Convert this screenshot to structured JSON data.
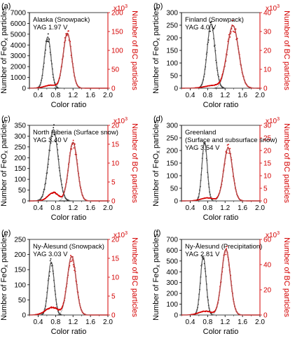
{
  "colors": {
    "black_series": "#000000",
    "red_series": "#d40000",
    "fit_gray": "#888888"
  },
  "chart_data": [
    {
      "type": "line",
      "panel_label": "(a)",
      "annotation": [
        "Alaska (Snowpack)",
        "YAG 1.97 V"
      ],
      "xlabel": "Color ratio",
      "ylabel_left": "Number of FeOx particles",
      "ylabel_right": "Number of BC particles",
      "right_multiplier": "x10",
      "right_multiplier_exp": "3",
      "xlim": [
        0.2,
        2.0
      ],
      "xticks": [
        0.4,
        0.8,
        1.2,
        1.6,
        2.0
      ],
      "ylim_left": [
        0,
        7000
      ],
      "yticks_left": [
        0,
        1000,
        2000,
        3000,
        4000,
        5000,
        6000,
        7000
      ],
      "ylim_right": [
        0,
        200
      ],
      "yticks_right": [
        0,
        50,
        100,
        150,
        200
      ],
      "series": [
        {
          "axis": "left",
          "color": "#000000",
          "fit": {
            "center": 0.62,
            "width": 0.075,
            "peak": 4750
          }
        },
        {
          "axis": "right",
          "color": "#d40000",
          "fit": {
            "center": 1.07,
            "width": 0.095,
            "peak": 145
          },
          "shoulder": {
            "center": 0.7,
            "width": 0.15,
            "peak": 8
          }
        }
      ]
    },
    {
      "type": "line",
      "panel_label": "(b)",
      "annotation": [
        "Finland (Snowpack)",
        "YAG 4.0 V"
      ],
      "xlabel": "Color ratio",
      "ylabel_left": "Number of FeOx particles",
      "ylabel_right": "Number of BC particles",
      "right_multiplier": "x10",
      "right_multiplier_exp": "3",
      "xlim": [
        0.2,
        2.0
      ],
      "xticks": [
        0.4,
        0.8,
        1.2,
        1.6,
        2.0
      ],
      "ylim_left": [
        0,
        300
      ],
      "yticks_left": [
        0,
        50,
        100,
        150,
        200,
        250,
        300
      ],
      "ylim_right": [
        0,
        40
      ],
      "yticks_right": [
        0,
        10,
        20,
        30,
        40
      ],
      "series": [
        {
          "axis": "left",
          "color": "#000000",
          "fit": {
            "center": 0.88,
            "width": 0.09,
            "peak": 255
          }
        },
        {
          "axis": "right",
          "color": "#d40000",
          "fit": {
            "center": 1.38,
            "width": 0.13,
            "peak": 33
          },
          "shoulder": {
            "center": 0.95,
            "width": 0.2,
            "peak": 1.5
          }
        }
      ]
    },
    {
      "type": "line",
      "panel_label": "(c)",
      "annotation": [
        "North Siberia (Surface snow)",
        "YAG 3.40 V"
      ],
      "xlabel": "Color ratio",
      "ylabel_left": "Number of FeOx particles",
      "ylabel_right": "Number of BC particles",
      "right_multiplier": "x10",
      "right_multiplier_exp": "3",
      "xlim": [
        0.2,
        2.0
      ],
      "xticks": [
        0.4,
        0.8,
        1.2,
        1.6,
        2.0
      ],
      "ylim_left": [
        0,
        350
      ],
      "yticks_left": [
        0,
        50,
        100,
        150,
        200,
        250,
        300,
        350
      ],
      "ylim_right": [
        0,
        20
      ],
      "yticks_right": [
        0,
        5,
        10,
        15,
        20
      ],
      "series": [
        {
          "axis": "left",
          "color": "#000000",
          "fit": {
            "center": 0.75,
            "width": 0.11,
            "peak": 330
          }
        },
        {
          "axis": "right",
          "color": "#d40000",
          "fit": {
            "center": 1.2,
            "width": 0.1,
            "peak": 15.5
          },
          "shoulder": {
            "center": 0.75,
            "width": 0.12,
            "peak": 2.2
          }
        }
      ]
    },
    {
      "type": "line",
      "panel_label": "(d)",
      "annotation": [
        "Greenland",
        "(Surface and subsurface snow)",
        "YAG 3.54 V"
      ],
      "xlabel": "Color ratio",
      "ylabel_left": "Number of FeOx particles",
      "ylabel_right": "Number of BC particles",
      "right_multiplier": "x10",
      "right_multiplier_exp": "3",
      "xlim": [
        0.2,
        2.0
      ],
      "xticks": [
        0.4,
        0.8,
        1.2,
        1.6,
        2.0
      ],
      "ylim_left": [
        0,
        300
      ],
      "yticks_left": [
        0,
        50,
        100,
        150,
        200,
        250,
        300
      ],
      "ylim_right": [
        0,
        30
      ],
      "yticks_right": [
        0,
        5,
        10,
        15,
        20,
        25,
        30
      ],
      "series": [
        {
          "axis": "left",
          "color": "#000000",
          "fit": {
            "center": 0.73,
            "width": 0.06,
            "peak": 235
          }
        },
        {
          "axis": "right",
          "color": "#d40000",
          "fit": {
            "center": 1.27,
            "width": 0.1,
            "peak": 21
          },
          "shoulder": {
            "center": 0.8,
            "width": 0.15,
            "peak": 1.2
          }
        }
      ]
    },
    {
      "type": "line",
      "panel_label": "(e)",
      "annotation": [
        "Ny-Ålesund (Snowpack)",
        "YAG 3.03 V"
      ],
      "xlabel": "Color ratio",
      "ylabel_left": "Number of FeOx particles",
      "ylabel_right": "Number of BC particles",
      "right_multiplier": "x10",
      "right_multiplier_exp": "3",
      "xlim": [
        0.2,
        2.0
      ],
      "xticks": [
        0.4,
        0.8,
        1.2,
        1.6,
        2.0
      ],
      "ylim_left": [
        0,
        250
      ],
      "yticks_left": [
        0,
        50,
        100,
        150,
        200,
        250
      ],
      "ylim_right": [
        0,
        20
      ],
      "yticks_right": [
        0,
        5,
        10,
        15,
        20
      ],
      "series": [
        {
          "axis": "left",
          "color": "#000000",
          "fit": {
            "center": 0.7,
            "width": 0.07,
            "peak": 175
          }
        },
        {
          "axis": "right",
          "color": "#d40000",
          "fit": {
            "center": 1.17,
            "width": 0.1,
            "peak": 15.5
          },
          "shoulder": {
            "center": 0.72,
            "width": 0.15,
            "peak": 2
          }
        }
      ]
    },
    {
      "type": "line",
      "panel_label": "(f)",
      "annotation": [
        "Ny-Ålesund (Precipitation)",
        "YAG 2.81 V"
      ],
      "xlabel": "Color ratio",
      "ylabel_left": "Number of FeOx particles",
      "ylabel_right": "Number of BC particles",
      "right_multiplier": "x10",
      "right_multiplier_exp": "3",
      "xlim": [
        0.2,
        2.0
      ],
      "xticks": [
        0.4,
        0.8,
        1.2,
        1.6,
        2.0
      ],
      "ylim_left": [
        0,
        700
      ],
      "yticks_left": [
        0,
        100,
        200,
        300,
        400,
        500,
        600,
        700
      ],
      "ylim_right": [
        0,
        60
      ],
      "yticks_right": [
        0,
        20,
        40,
        60
      ],
      "series": [
        {
          "axis": "left",
          "color": "#000000",
          "fit": {
            "center": 0.7,
            "width": 0.065,
            "peak": 540
          }
        },
        {
          "axis": "right",
          "color": "#d40000",
          "fit": {
            "center": 1.22,
            "width": 0.1,
            "peak": 52
          },
          "shoulder": {
            "center": 0.75,
            "width": 0.15,
            "peak": 3
          }
        }
      ]
    }
  ]
}
